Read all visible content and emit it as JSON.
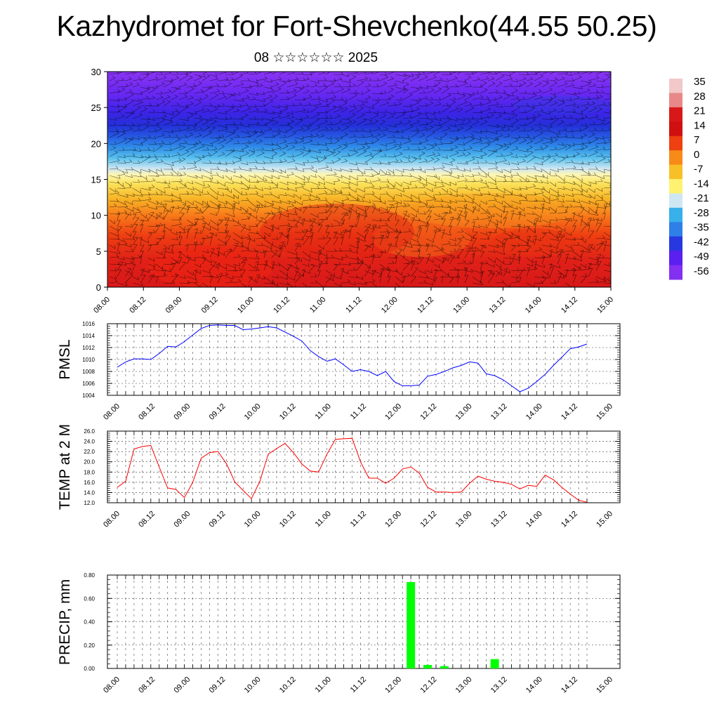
{
  "title": "Kazhydromet for Fort-Shevchenko(44.55 50.25)",
  "subtitle": "08 ☆☆☆☆☆☆ 2025",
  "time_ticks": [
    "08.00",
    "08.12",
    "09.00",
    "09.12",
    "10.00",
    "10.12",
    "11.00",
    "11.12",
    "12.00",
    "12.12",
    "13.00",
    "13.12",
    "14.00",
    "14.12",
    "15.00"
  ],
  "colorbar": {
    "labels": [
      "35",
      "28",
      "21",
      "14",
      "7",
      "0",
      "-7",
      "-14",
      "-21",
      "-28",
      "-35",
      "-42",
      "-49",
      "-56"
    ],
    "colors": [
      "#f2c8c8",
      "#e88888",
      "#d81818",
      "#cf1010",
      "#ee4010",
      "#f88a18",
      "#f8c028",
      "#fff270",
      "#cfe7f3",
      "#38b0ea",
      "#2f7fe8",
      "#2838e0",
      "#5b1ff0",
      "#8430f0"
    ]
  },
  "chart_data": [
    {
      "type": "heatmap",
      "title": "",
      "xlabel": "",
      "ylabel": "",
      "ylim": [
        0,
        30
      ],
      "yticks": [
        0,
        5,
        10,
        15,
        20,
        25,
        30
      ],
      "x": [
        "08.00",
        "08.12",
        "09.00",
        "09.12",
        "10.00",
        "10.12",
        "11.00",
        "11.12",
        "12.00",
        "12.12",
        "13.00",
        "13.12",
        "14.00",
        "14.12",
        "15.00"
      ],
      "layers": [
        {
          "y_range": [
            0,
            5
          ],
          "value": 21
        },
        {
          "y_range": [
            5,
            10
          ],
          "value": 14
        },
        {
          "y_range": [
            10,
            15
          ],
          "value": 0
        },
        {
          "y_range": [
            15,
            17
          ],
          "value": -14
        },
        {
          "y_range": [
            17,
            20
          ],
          "value": -28
        },
        {
          "y_range": [
            20,
            23
          ],
          "value": -42
        },
        {
          "y_range": [
            23,
            30
          ],
          "value": -56
        }
      ],
      "overlay": "wind barbs"
    },
    {
      "type": "line",
      "ylabel": "PMSL",
      "ylim": [
        1004,
        1016
      ],
      "yticks": [
        "1004",
        "1006",
        "1008",
        "1010",
        "1012",
        "1014",
        "1016"
      ],
      "x_range": [
        0,
        56
      ],
      "series": [
        {
          "color": "#0000ff",
          "values": [
            1008.7,
            1009.6,
            1010.1,
            1010.1,
            1010.0,
            1011.0,
            1012.2,
            1012.1,
            1013.0,
            1014.1,
            1015.2,
            1015.7,
            1015.8,
            1015.7,
            1015.7,
            1015.0,
            1015.1,
            1015.3,
            1015.5,
            1015.3,
            1014.6,
            1013.9,
            1013.1,
            1011.5,
            1010.5,
            1009.7,
            1010.1,
            1009.1,
            1008.0,
            1008.3,
            1008.0,
            1007.3,
            1008.0,
            1006.3,
            1005.6,
            1005.6,
            1005.7,
            1007.2,
            1007.5,
            1008.0,
            1008.6,
            1009.0,
            1009.6,
            1009.4,
            1007.6,
            1007.3,
            1006.6,
            1005.6,
            1004.6,
            1005.2,
            1006.3,
            1007.5,
            1009.0,
            1010.4,
            1011.8,
            1012.1,
            1012.6
          ]
        }
      ]
    },
    {
      "type": "line",
      "ylabel": "TEMP at 2 M",
      "ylim": [
        12,
        26
      ],
      "yticks": [
        "12.0",
        "14.0",
        "16.0",
        "18.0",
        "20.0",
        "22.0",
        "24.0",
        "26.0"
      ],
      "x_range": [
        0,
        56
      ],
      "series": [
        {
          "color": "#ff0000",
          "values": [
            15.0,
            16.2,
            22.5,
            23.0,
            23.2,
            19.0,
            14.9,
            14.6,
            13.0,
            16.0,
            20.7,
            21.8,
            22.0,
            19.7,
            16.1,
            14.4,
            12.8,
            16.2,
            21.5,
            22.6,
            23.6,
            21.8,
            19.6,
            18.2,
            18.0,
            21.5,
            24.4,
            24.5,
            24.6,
            20.0,
            16.8,
            16.8,
            15.8,
            16.8,
            18.6,
            19.0,
            17.8,
            15.0,
            14.1,
            14.1,
            14.0,
            14.1,
            15.8,
            17.2,
            16.6,
            16.2,
            16.0,
            15.6,
            14.7,
            15.4,
            15.2,
            17.4,
            16.5,
            15.0,
            13.7,
            12.5,
            12.1
          ]
        }
      ]
    },
    {
      "type": "bar",
      "ylabel": "PRECIP, mm",
      "ylim": [
        0,
        0.8
      ],
      "yticks": [
        "0.00",
        "0.20",
        "0.40",
        "0.60",
        "0.80"
      ],
      "x_range": [
        0,
        56
      ],
      "bar_color": "#00ff00",
      "bars": [
        {
          "x": 35,
          "value": 0.74
        },
        {
          "x": 37,
          "value": 0.03
        },
        {
          "x": 39,
          "value": 0.02
        },
        {
          "x": 45,
          "value": 0.08
        }
      ]
    }
  ]
}
